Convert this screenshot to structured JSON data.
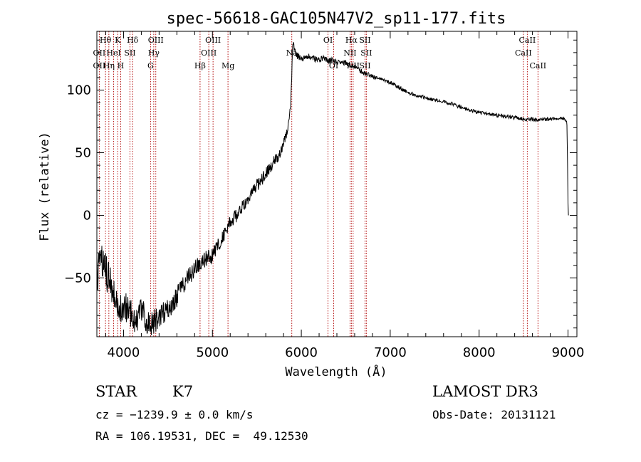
{
  "chart_data": {
    "type": "line",
    "title": "spec-56618-GAC105N47V2_sp11-177.fits",
    "xlabel": "Wavelength (Å)",
    "ylabel": "Flux (relative)",
    "xlim": [
      3700,
      9100
    ],
    "ylim": [
      -97,
      147
    ],
    "xticks": [
      4000,
      5000,
      6000,
      7000,
      8000,
      9000
    ],
    "xtick_labels": [
      "4000",
      "5000",
      "6000",
      "7000",
      "8000",
      "9000"
    ],
    "yticks": [
      -50,
      0,
      50,
      100
    ],
    "ytick_labels": [
      "−50",
      "0",
      "50",
      "100"
    ],
    "spectrum_anchor_x": [
      3700,
      3760,
      3800,
      3850,
      3900,
      3950,
      4000,
      4050,
      4100,
      4150,
      4200,
      4250,
      4300,
      4350,
      4400,
      4450,
      4500,
      4550,
      4600,
      4650,
      4700,
      4750,
      4800,
      4850,
      4900,
      4950,
      5000,
      5050,
      5100,
      5150,
      5200,
      5250,
      5300,
      5350,
      5400,
      5450,
      5500,
      5550,
      5600,
      5650,
      5700,
      5750,
      5800,
      5830,
      5860,
      5880,
      5895,
      5905,
      5920,
      5950,
      6000,
      6050,
      6100,
      6150,
      6200,
      6250,
      6300,
      6350,
      6400,
      6450,
      6500,
      6560,
      6600,
      6650,
      6700,
      6800,
      6900,
      7000,
      7100,
      7200,
      7300,
      7400,
      7500,
      7600,
      7700,
      7800,
      7900,
      8000,
      8100,
      8200,
      8300,
      8400,
      8500,
      8600,
      8700,
      8800,
      8900,
      8960,
      8990,
      9000,
      9005
    ],
    "spectrum_anchor_y": [
      -50,
      -35,
      -45,
      -52,
      -65,
      -75,
      -72,
      -76,
      -80,
      -85,
      -77,
      -82,
      -88,
      -84,
      -80,
      -78,
      -75,
      -70,
      -65,
      -58,
      -52,
      -48,
      -43,
      -40,
      -36,
      -34,
      -32,
      -25,
      -20,
      -12,
      -6,
      -2,
      2,
      8,
      14,
      18,
      24,
      28,
      34,
      38,
      44,
      48,
      58,
      64,
      74,
      88,
      118,
      140,
      132,
      128,
      124,
      128,
      126,
      125,
      124,
      126,
      123,
      124,
      122,
      122,
      122,
      119,
      119,
      116,
      114,
      111,
      109,
      106,
      102,
      98,
      96,
      94,
      92,
      91,
      89,
      86,
      84,
      82,
      81,
      80,
      79,
      78,
      77,
      77,
      76,
      77,
      78,
      78,
      73,
      40,
      0
    ],
    "noise_amplitude_anchor_x": [
      3700,
      4000,
      4500,
      5000,
      5500,
      5800,
      5900,
      6100,
      7000,
      8000,
      9000
    ],
    "noise_amplitude": [
      16,
      13,
      9,
      6,
      5,
      4,
      3,
      2.5,
      1.6,
      1.4,
      1.6
    ],
    "spectral_lines": [
      {
        "name": "Hθ",
        "wavelength": 3797,
        "row": 0
      },
      {
        "name": "OII",
        "wavelength": 3727,
        "row": 1
      },
      {
        "name": "OII",
        "wavelength": 3727,
        "row": 2
      },
      {
        "name": "HeI",
        "wavelength": 3889,
        "row": 1
      },
      {
        "name": "Hη",
        "wavelength": 3835,
        "row": 2
      },
      {
        "name": "K",
        "wavelength": 3934,
        "row": 0
      },
      {
        "name": "SII",
        "wavelength": 4072,
        "row": 1
      },
      {
        "name": "H",
        "wavelength": 3968,
        "row": 2
      },
      {
        "name": "Hδ",
        "wavelength": 4102,
        "row": 0
      },
      {
        "name": "OIII",
        "wavelength": 4363,
        "row": 0
      },
      {
        "name": "Hγ",
        "wavelength": 4340,
        "row": 1
      },
      {
        "name": "G",
        "wavelength": 4304,
        "row": 2
      },
      {
        "name": "Hβ",
        "wavelength": 4861,
        "row": 2
      },
      {
        "name": "OIII",
        "wavelength": 5007,
        "row": 0
      },
      {
        "name": "OIII",
        "wavelength": 4959,
        "row": 1
      },
      {
        "name": "Mg",
        "wavelength": 5175,
        "row": 2
      },
      {
        "name": "Na",
        "wavelength": 5893,
        "row": 1
      },
      {
        "name": "OI",
        "wavelength": 6300,
        "row": 0
      },
      {
        "name": "OI",
        "wavelength": 6364,
        "row": 2
      },
      {
        "name": "Hα",
        "wavelength": 6563,
        "row": 0
      },
      {
        "name": "SII",
        "wavelength": 6716,
        "row": 0
      },
      {
        "name": "NII",
        "wavelength": 6548,
        "row": 1
      },
      {
        "name": "NII",
        "wavelength": 6583,
        "row": 2
      },
      {
        "name": "SII",
        "wavelength": 6731,
        "row": 1
      },
      {
        "name": "SII",
        "wavelength": 6716,
        "row": 2
      },
      {
        "name": "CaII",
        "wavelength": 8542,
        "row": 0
      },
      {
        "name": "CaII",
        "wavelength": 8498,
        "row": 1
      },
      {
        "name": "CaII",
        "wavelength": 8662,
        "row": 2
      }
    ],
    "line_color": "#000000",
    "marker_color": "#b00000"
  },
  "info": {
    "class": "STAR",
    "subclass": "K7",
    "survey": "LAMOST DR3",
    "cz": "cz = −1239.9 ± 0.0 km/s",
    "obs_date": "Obs-Date: 20131121",
    "coords": "RA = 106.19531, DEC =  49.12530"
  }
}
